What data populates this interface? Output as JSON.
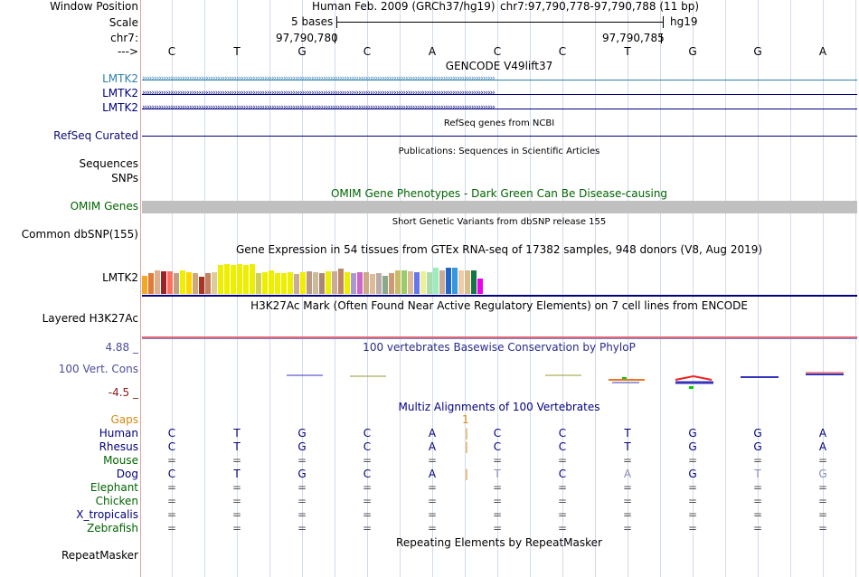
{
  "labels": {
    "window_position": "Window Position",
    "scale": "Scale",
    "chrom": "chr7:",
    "strand": "--->",
    "gencode_gene_1": "LMTK2",
    "gencode_gene_2": "LMTK2",
    "gencode_gene_3": "LMTK2",
    "refseq": "RefSeq Curated",
    "sequences": "Sequences",
    "snps": "SNPs",
    "omim": "OMIM Genes",
    "dbsnp": "Common dbSNP(155)",
    "gtex_gene": "LMTK2",
    "h3k27ac": "Layered H3K27Ac",
    "cons_max": "4.88 _",
    "cons_name": "100 Vert. Cons",
    "cons_min": "-4.5 _",
    "gaps": "Gaps",
    "repeatmasker": "RepeatMasker"
  },
  "ruler": {
    "assembly_text": "Human Feb. 2009 (GRCh37/hg19)",
    "position_text": "chr7:97,790,778-97,790,788 (11 bp)",
    "scale_text": "5 bases",
    "db": "hg19",
    "pos_left": "97,790,780",
    "pos_right": "97,790,785"
  },
  "bases": [
    "C",
    "T",
    "G",
    "C",
    "A",
    "C",
    "C",
    "T",
    "G",
    "G",
    "A"
  ],
  "titles": {
    "gencode": "GENCODE V49lift37",
    "refseq": "RefSeq genes from NCBI",
    "publications": "Publications: Sequences in Scientific Articles",
    "omim": "OMIM Gene Phenotypes - Dark Green Can Be Disease-causing",
    "dbsnp": "Short Genetic Variants from dbSNP release 155",
    "gtex": "Gene Expression in 54 tissues from GTEx RNA-seq of 17382 samples, 948 donors (V8, Aug 2019)",
    "h3k27ac": "H3K27Ac Mark (Often Found Near Active Regulatory Elements) on 7 cell lines from ENCODE",
    "cons": "100 vertebrates Basewise Conservation by PhyloP",
    "multiz": "Multiz Alignments of 100 Vertebrates",
    "repeatmasker": "Repeating Elements by RepeatMasker"
  },
  "gaps_marker": "1",
  "species": [
    {
      "name": "Human",
      "color": "#000080",
      "bases": [
        "C",
        "T",
        "G",
        "C",
        "A",
        "|",
        "C",
        "C",
        "T",
        "G",
        "G",
        "A"
      ]
    },
    {
      "name": "Rhesus",
      "color": "#000080",
      "bases": [
        "C",
        "T",
        "G",
        "C",
        "A",
        "|",
        "C",
        "C",
        "T",
        "G",
        "G",
        "A"
      ]
    },
    {
      "name": "Mouse",
      "color": "#006400",
      "bases": [
        "=",
        "=",
        "=",
        "=",
        "=",
        "",
        "=",
        "=",
        "=",
        "=",
        "=",
        "="
      ]
    },
    {
      "name": "Dog",
      "color": "#000080",
      "bases": [
        "C",
        "T",
        "G",
        "C",
        "A",
        "|",
        "T",
        "C",
        "A",
        "G",
        "T",
        "G"
      ]
    },
    {
      "name": "Elephant",
      "color": "#006400",
      "bases": [
        "=",
        "=",
        "=",
        "=",
        "=",
        "",
        "=",
        "=",
        "=",
        "=",
        "=",
        "="
      ]
    },
    {
      "name": "Chicken",
      "color": "#006400",
      "bases": [
        "=",
        "=",
        "=",
        "=",
        "=",
        "",
        "=",
        "=",
        "=",
        "=",
        "=",
        "="
      ]
    },
    {
      "name": "X_tropicalis",
      "color": "#000080",
      "bases": [
        "=",
        "=",
        "=",
        "=",
        "=",
        "",
        "=",
        "=",
        "=",
        "=",
        "=",
        "="
      ]
    },
    {
      "name": "Zebrafish",
      "color": "#006400",
      "bases": [
        "=",
        "=",
        "=",
        "=",
        "=",
        "",
        "=",
        "=",
        "=",
        "=",
        "=",
        "="
      ]
    }
  ],
  "gtex_bars": {
    "values": [
      0.48,
      0.55,
      0.62,
      0.6,
      0.6,
      0.55,
      0.62,
      0.58,
      0.55,
      0.45,
      0.55,
      0.58,
      0.75,
      0.78,
      0.77,
      0.78,
      0.77,
      0.78,
      0.55,
      0.58,
      0.62,
      0.55,
      0.55,
      0.56,
      0.52,
      0.58,
      0.6,
      0.56,
      0.55,
      0.6,
      0.6,
      0.67,
      0.58,
      0.55,
      0.56,
      0.56,
      0.52,
      0.55,
      0.48,
      0.55,
      0.63,
      0.62,
      0.6,
      0.57,
      0.6,
      0.57,
      0.7,
      0.63,
      0.7,
      0.7,
      0.62,
      0.62,
      0.62,
      0.4
    ],
    "colors": [
      "#f5a623",
      "#e07b39",
      "#ddb08a",
      "#9b2226",
      "#ff6f61",
      "#c0a080",
      "#eeee00",
      "#ffd700",
      "#ccaa77",
      "#aa3322",
      "#c87f5d",
      "#ddcc99",
      "#eeee00",
      "#eeee00",
      "#eeee00",
      "#eeee00",
      "#eeee00",
      "#eeee00",
      "#cfcf55",
      "#eeee00",
      "#eeee00",
      "#eeee00",
      "#eeee00",
      "#eeee00",
      "#ccaa99",
      "#eeee00",
      "#bb9988",
      "#ccbb99",
      "#aa8877",
      "#eeee00",
      "#ccaa99",
      "#bb8866",
      "#eeee00",
      "#aa99cc",
      "#cc66cc",
      "#ccaa88",
      "#ddbb99",
      "#bbaaaa",
      "#88aa88",
      "#cc9977",
      "#ccbb66",
      "#99cc66",
      "#ddbb99",
      "#6677ee",
      "#eeee99",
      "#aaddaa",
      "#99eebb",
      "#ccaa99",
      "#2266cc",
      "#3399dd",
      "#eeccaa",
      "#ddbb88",
      "#117744",
      "#ee00ee"
    ]
  },
  "colors": {
    "gencode_blue": "#2f7eb0",
    "gene_navy": "#000080",
    "refseq_label": "#0c0c78",
    "omim_green": "#006400",
    "cons_label": "#4c4c9c",
    "cons_min": "#8b1a1a",
    "gaps_orange": "#d4890d",
    "h3k_line": "#e06a7a"
  }
}
